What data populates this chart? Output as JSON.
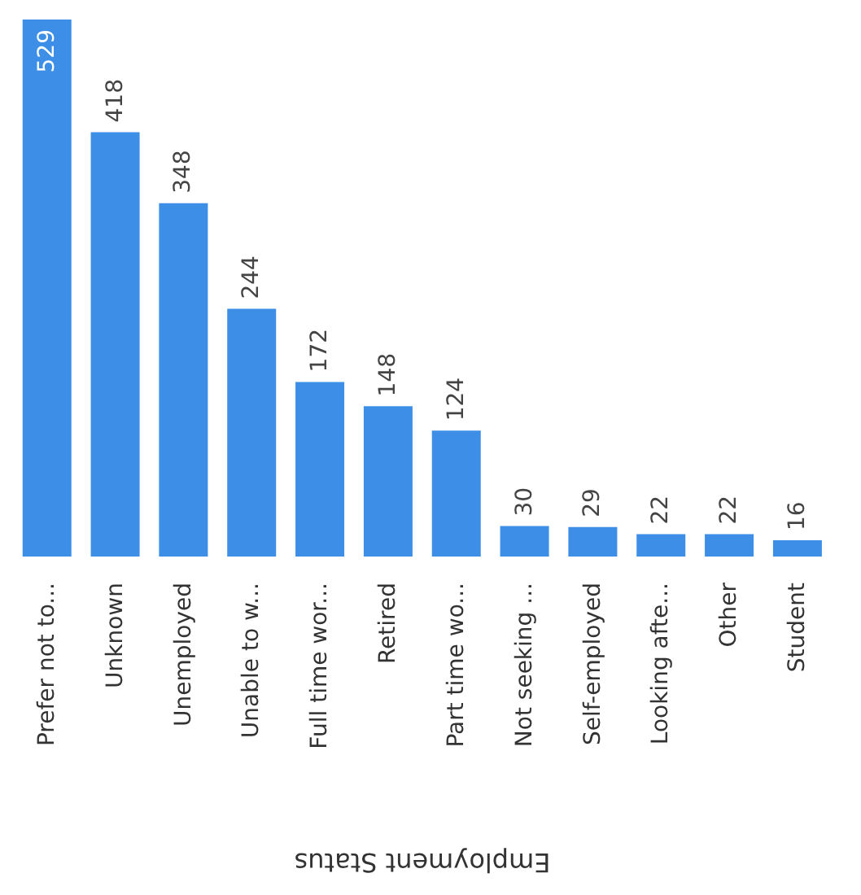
{
  "chart_data": {
    "type": "bar",
    "xlabel": "Employment Status",
    "categories": [
      "Prefer not to...",
      "Unknown",
      "Unemployed",
      "Unable to w...",
      "Full time wor...",
      "Retired",
      "Part time wo...",
      "Not seeking ...",
      "Self-employed",
      "Looking afte...",
      "Other",
      "Student"
    ],
    "values": [
      529,
      418,
      348,
      244,
      172,
      148,
      124,
      30,
      29,
      22,
      22,
      16
    ],
    "color": "#3c8ee6",
    "data_labels": true
  }
}
